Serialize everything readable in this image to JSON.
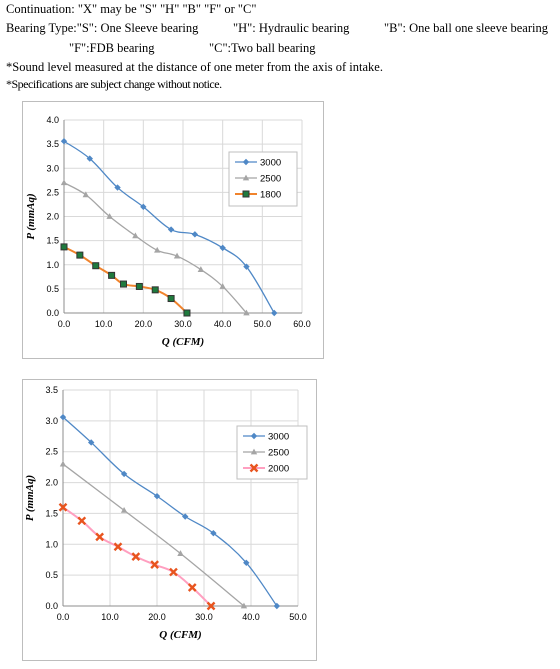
{
  "notes": {
    "line1": "Continuation: \"X\" may  be  \"S\"  \"H\"  \"B\"  \"F\"  or  \"C\"",
    "line2a": "Bearing Type:\"S\": One Sleeve bearing",
    "line2b": "\"H\": Hydraulic   bearing",
    "line2c": "\"B\": One ball one sleeve bearing",
    "line3a": "\"F\":FDB   bearing",
    "line3b": "\"C\":Two ball bearing",
    "line4": "*Sound level measured at the distance of one meter from the axis of intake.",
    "line5": "*Specifications are subject change without notice."
  },
  "chart_data": [
    {
      "type": "line",
      "xlabel": "Q (CFM)",
      "ylabel": "P (mmAq)",
      "xlim": [
        0,
        60
      ],
      "ylim": [
        0,
        4.0
      ],
      "xticks": [
        "0.0",
        "10.0",
        "20.0",
        "30.0",
        "40.0",
        "50.0",
        "60.0"
      ],
      "yticks": [
        "0.0",
        "0.5",
        "1.0",
        "1.5",
        "2.0",
        "2.5",
        "3.0",
        "3.5",
        "4.0"
      ],
      "grid": true,
      "legend_position": "top-right",
      "series": [
        {
          "name": "3000",
          "color": "#4f88c6",
          "marker": "diamond",
          "x": [
            0,
            6.5,
            13.5,
            20,
            27,
            33,
            40,
            46,
            53
          ],
          "y": [
            3.56,
            3.2,
            2.6,
            2.2,
            1.73,
            1.63,
            1.35,
            0.96,
            0
          ]
        },
        {
          "name": "2500",
          "color": "#a5a5a5",
          "marker": "triangle",
          "x": [
            0,
            5.5,
            11.5,
            18,
            23.5,
            28.5,
            34.5,
            40,
            46
          ],
          "y": [
            2.7,
            2.45,
            2.0,
            1.6,
            1.3,
            1.18,
            0.9,
            0.55,
            0
          ]
        },
        {
          "name": "1800",
          "color": "#f0832c",
          "marker": "square",
          "marker_color": "#333333",
          "x": [
            0,
            4,
            8,
            12,
            15,
            19,
            23,
            27,
            31
          ],
          "y": [
            1.37,
            1.2,
            0.98,
            0.78,
            0.6,
            0.55,
            0.48,
            0.3,
            0
          ]
        }
      ]
    },
    {
      "type": "line",
      "xlabel": "Q (CFM)",
      "ylabel": "P (mmAq)",
      "xlim": [
        0,
        50
      ],
      "ylim": [
        0,
        3.5
      ],
      "xticks": [
        "0.0",
        "10.0",
        "20.0",
        "30.0",
        "40.0",
        "50.0"
      ],
      "yticks": [
        "0.0",
        "0.5",
        "1.0",
        "1.5",
        "2.0",
        "2.5",
        "3.0",
        "3.5"
      ],
      "grid": true,
      "legend_position": "top-right",
      "series": [
        {
          "name": "3000",
          "color": "#4f88c6",
          "marker": "diamond",
          "x": [
            0,
            6,
            13,
            20,
            26,
            32,
            39,
            45.5
          ],
          "y": [
            3.06,
            2.65,
            2.14,
            1.78,
            1.45,
            1.18,
            0.7,
            0
          ]
        },
        {
          "name": "2500",
          "color": "#a5a5a5",
          "marker": "triangle",
          "x": [
            0,
            13,
            25,
            38.5
          ],
          "y": [
            2.3,
            1.55,
            0.85,
            0
          ]
        },
        {
          "name": "2000",
          "color": "#ff9fc0",
          "marker": "x",
          "marker_color": "#e8541e",
          "x": [
            0,
            4,
            7.8,
            11.7,
            15.5,
            19.5,
            23.5,
            27.5,
            31.5
          ],
          "y": [
            1.6,
            1.38,
            1.12,
            0.96,
            0.8,
            0.67,
            0.55,
            0.3,
            0
          ]
        }
      ]
    }
  ]
}
